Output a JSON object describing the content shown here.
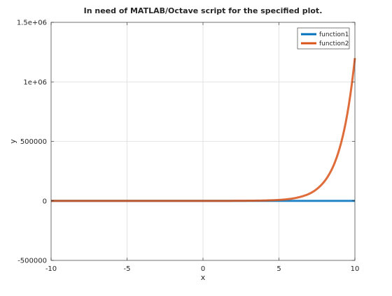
{
  "chart_data": {
    "type": "line",
    "title": "In need of MATLAB/Octave script for the specified plot.",
    "xlabel": "x",
    "ylabel": "y",
    "xlim": [
      -10,
      10
    ],
    "ylim": [
      -500000,
      1500000
    ],
    "x_ticks": [
      -10,
      -5,
      0,
      5,
      10
    ],
    "x_tick_labels": [
      "-10",
      "-5",
      "0",
      "5",
      "10"
    ],
    "y_ticks": [
      -500000,
      0,
      500000,
      1000000,
      1500000
    ],
    "y_tick_labels": [
      "-500000",
      "0",
      "500000",
      "1e+06",
      "1.5e+06"
    ],
    "grid": true,
    "legend_position": "top-right",
    "series": [
      {
        "name": "function1",
        "color": "#0072BD",
        "x": [
          -10,
          -8,
          -6,
          -4,
          -2,
          0,
          2,
          4,
          5,
          6,
          7,
          8,
          9,
          10
        ],
        "y": [
          0,
          0,
          0,
          0,
          0,
          0,
          0,
          0,
          0,
          0,
          0,
          0,
          0,
          0
        ]
      },
      {
        "name": "function2",
        "color": "#D95319",
        "x": [
          -10,
          -8,
          -6,
          -4,
          -2,
          0,
          2,
          4,
          5,
          5.5,
          6,
          6.5,
          7,
          7.5,
          8,
          8.5,
          9,
          9.5,
          10
        ],
        "y": [
          0,
          0,
          0,
          0,
          0,
          0,
          500,
          3000,
          8000,
          13000,
          22000,
          37000,
          60000,
          100000,
          165000,
          270000,
          445000,
          730000,
          1200000
        ]
      }
    ]
  }
}
